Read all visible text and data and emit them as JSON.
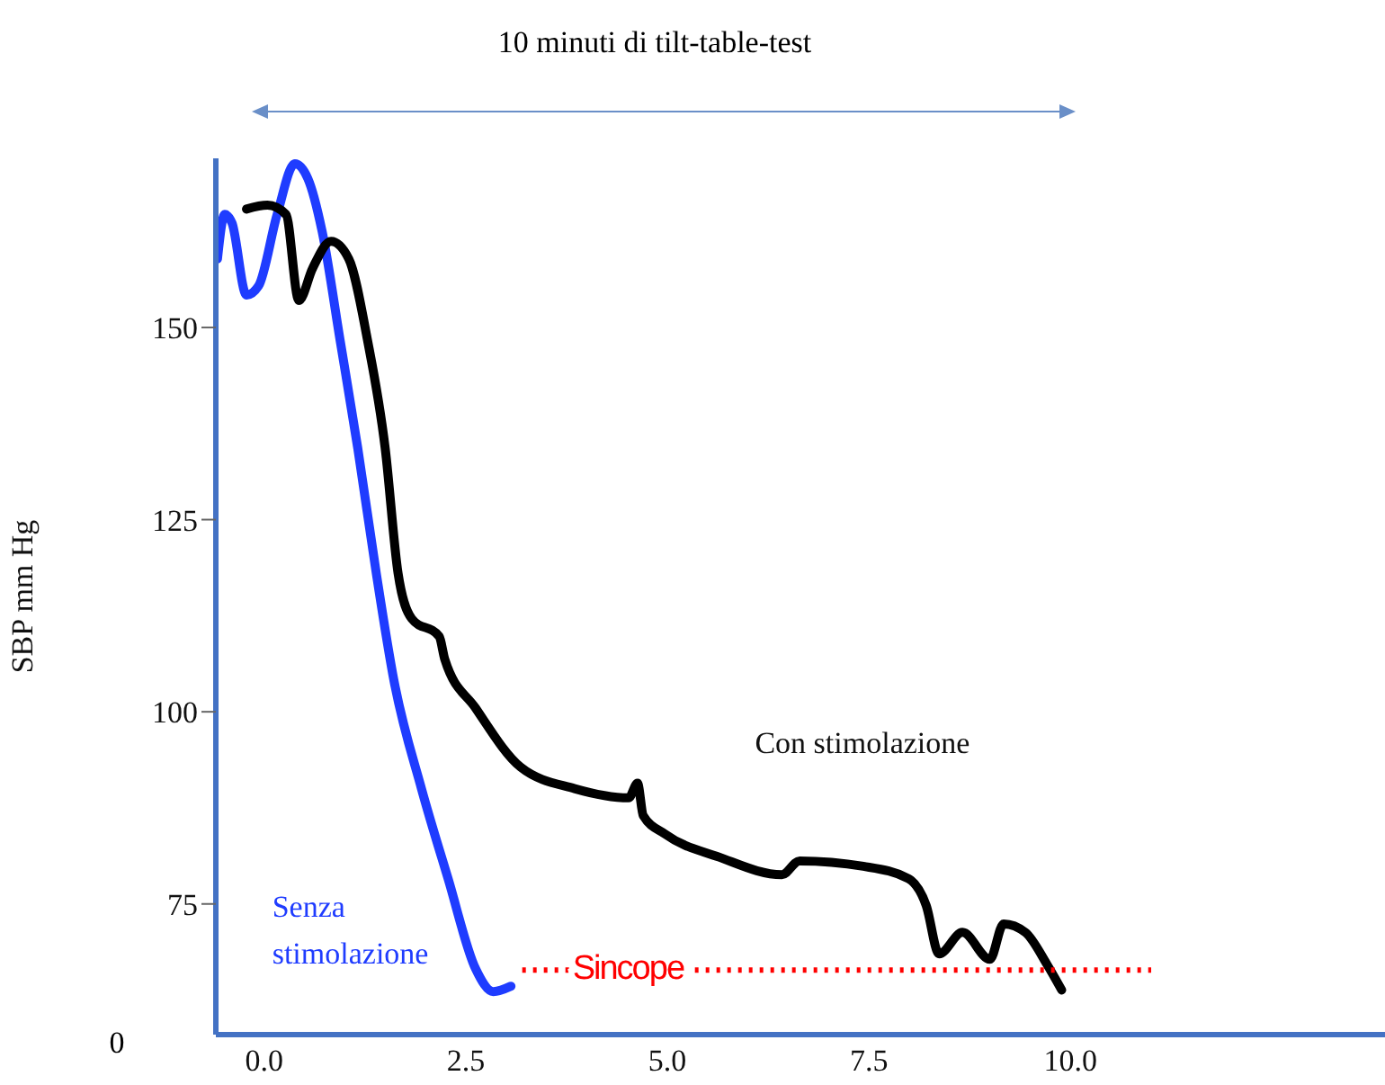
{
  "chart_data": {
    "type": "line",
    "ylabel": "SBP mm Hg",
    "annotations": [
      "10 minuti di tilt-table-test",
      "0"
    ],
    "xlim": [
      -0.6,
      13.9
    ],
    "xticks": [
      {
        "value": 0,
        "label": "0.0"
      },
      {
        "value": 2.5,
        "label": "2.5"
      },
      {
        "value": 5,
        "label": "5.0"
      },
      {
        "value": 7.5,
        "label": "7.5"
      },
      {
        "value": 10,
        "label": "10.0"
      }
    ],
    "ylim": [
      58,
      172
    ],
    "yticks": [
      75,
      100,
      125,
      150
    ],
    "series": [
      {
        "name": "Senza stimolazione",
        "color": "#1f3cff",
        "x": [
          -0.58,
          -0.49,
          -0.4,
          -0.22,
          -0.07,
          0.16,
          0.38,
          0.54,
          0.72,
          0.94,
          1.16,
          1.39,
          1.61,
          1.95,
          2.28,
          2.62,
          2.84,
          3.06
        ],
        "values": [
          158.9,
          164.7,
          163.6,
          154.2,
          155.4,
          164.7,
          171.3,
          169.4,
          162.4,
          148.4,
          134.3,
          118.0,
          104.0,
          90.0,
          78.3,
          66.6,
          63.6,
          64.3
        ]
      },
      {
        "name": "Con stimolazione",
        "color": "#000000",
        "x": [
          -0.22,
          0.04,
          0.27,
          0.43,
          0.6,
          0.83,
          1.05,
          1.28,
          1.5,
          1.66,
          1.83,
          2.17,
          2.24,
          2.62,
          3.18,
          3.85,
          4.52,
          4.63,
          4.7,
          4.97,
          5.64,
          6.42,
          6.64,
          7.43,
          7.99,
          8.21,
          8.37,
          8.66,
          9.0,
          9.17,
          9.44,
          9.71,
          9.89
        ],
        "values": [
          165.4,
          165.9,
          164.7,
          153.5,
          157.7,
          161.2,
          158.9,
          148.4,
          134.3,
          118.0,
          112.1,
          109.8,
          106.8,
          100.5,
          92.8,
          90.0,
          88.8,
          90.7,
          86.5,
          84.1,
          81.1,
          78.8,
          80.6,
          79.9,
          78.3,
          74.8,
          68.5,
          71.3,
          67.8,
          72.4,
          71.3,
          67.1,
          63.8
        ]
      },
      {
        "name": "Sincope",
        "color": "#ff0000",
        "line_style": "dotted",
        "x": [
          3.2,
          11.0
        ],
        "values": [
          66.4,
          66.4
        ]
      }
    ]
  }
}
